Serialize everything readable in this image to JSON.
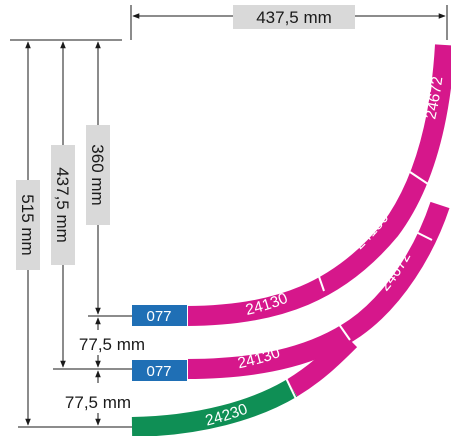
{
  "dimensions": {
    "top_width": "437,5 mm",
    "height_360": "360 mm",
    "height_437": "437,5 mm",
    "height_515": "515 mm",
    "spacing_1": "77,5 mm",
    "spacing_2": "77,5 mm"
  },
  "tracks": {
    "inner": {
      "tag": "077",
      "segment_1": "24130",
      "segment_2": "24130",
      "end_label": "24672"
    },
    "middle": {
      "tag": "077",
      "segment_1": "24130",
      "segment_2": "24672"
    },
    "outer": {
      "segment_1": "24230"
    }
  },
  "colors": {
    "track_magenta": "#d6178b",
    "track_green": "#0f8f55",
    "tag_blue": "#1f6fb5",
    "dim_label_bg": "#d9d9d9",
    "line": "#1a1a1a"
  }
}
